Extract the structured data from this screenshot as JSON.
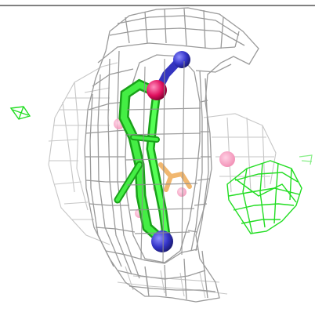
{
  "scene": {
    "kind": "molecular-structure-render",
    "background": "#ffffff",
    "top_rule_color": "#000000",
    "colors": {
      "density_mesh": "#9c9c9c",
      "density_mesh_light": "#c4c4c4",
      "difference_mesh": "#22dd22",
      "ligand_carbon": "#33ee33",
      "nitrogen": "#3333cc",
      "oxygen": "#e0105e",
      "pink_atoms": "#f08ab0",
      "orange_fragment": "#f0b060"
    }
  }
}
